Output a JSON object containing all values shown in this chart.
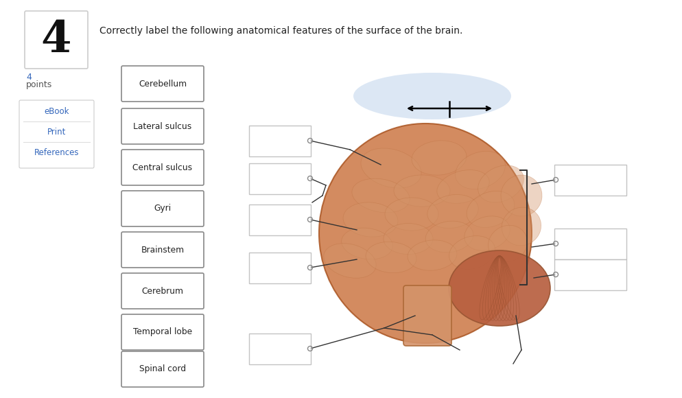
{
  "title": "Correctly label the following anatomical features of the surface of the brain.",
  "question_number": "4",
  "sidebar_links": [
    "eBook",
    "Print",
    "References"
  ],
  "answer_labels": [
    "Cerebellum",
    "Lateral sulcus",
    "Central sulcus",
    "Gyri",
    "Brainstem",
    "Cerebrum",
    "Temporal lobe",
    "Spinal cord"
  ],
  "bg_color": "#ffffff",
  "sidebar_link_color": "#3366bb",
  "points_color": "#3366bb",
  "title_color": "#222222",
  "number_color": "#111111",
  "box_edge_color": "#999999",
  "blank_edge_color": "#bbbbbb",
  "line_color": "#333333",
  "halo_color": "#c5d8ee",
  "brain_main_color": "#cc7744",
  "brain_edge_color": "#aa5522",
  "cerebellum_color": "#b86040",
  "brainstem_color": "#d4936a"
}
